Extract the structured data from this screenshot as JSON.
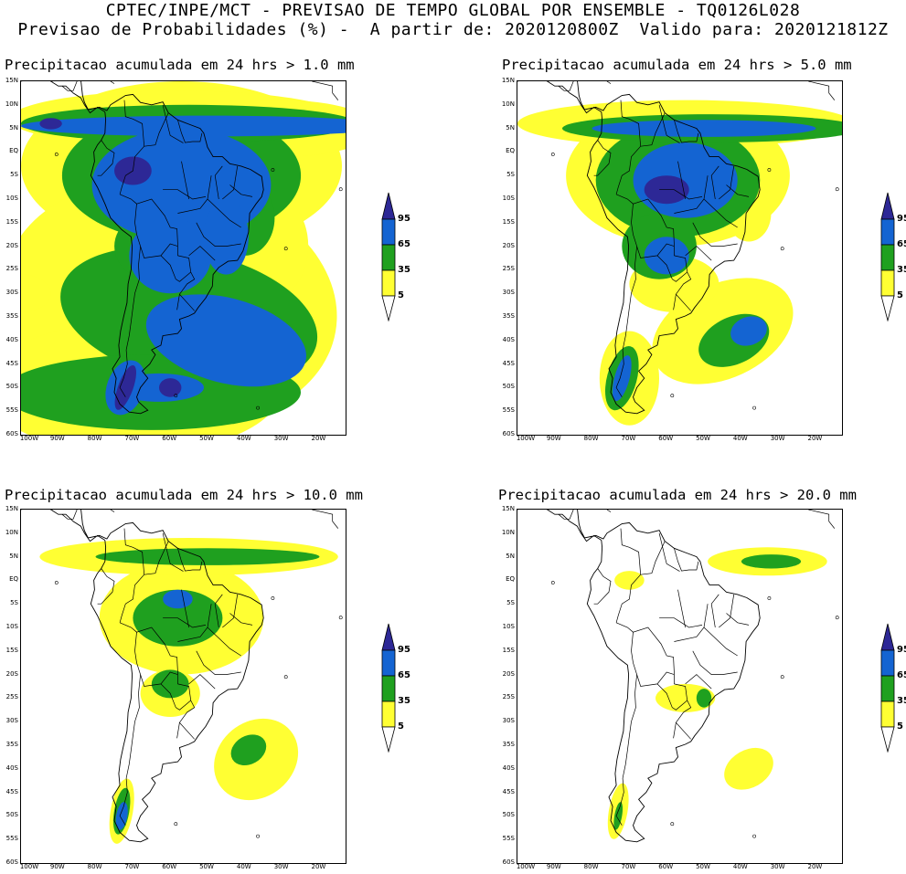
{
  "header": {
    "line1": "CPTEC/INPE/MCT - PREVISAO DE TEMPO GLOBAL POR ENSEMBLE - TQ0126L028",
    "line2": "Previsao de Probabilidades (%) -  A partir de: 2020120800Z  Valido para: 2020121812Z"
  },
  "colorbar": {
    "levels": [
      "5",
      "35",
      "65",
      "95"
    ],
    "colors": {
      "yellow": "#ffff33",
      "green": "#1fa01f",
      "blue": "#1464d2",
      "darkblue": "#2d2896"
    }
  },
  "axes": {
    "lat_labels": [
      "15N",
      "10N",
      "5N",
      "EQ",
      "5S",
      "10S",
      "15S",
      "20S",
      "25S",
      "30S",
      "35S",
      "40S",
      "45S",
      "50S",
      "55S",
      "60S"
    ],
    "lon_labels": [
      "100W",
      "90W",
      "80W",
      "70W",
      "60W",
      "50W",
      "40W",
      "30W",
      "20W"
    ]
  },
  "panels": [
    {
      "title": "Precipitacao acumulada em 24 hrs > 1.0 mm"
    },
    {
      "title": "Precipitacao acumulada em 24 hrs > 5.0 mm"
    },
    {
      "title": "Precipitacao acumulada em 24 hrs > 10.0 mm"
    },
    {
      "title": "Precipitacao acumulada em 24 hrs > 20.0 mm"
    }
  ]
}
